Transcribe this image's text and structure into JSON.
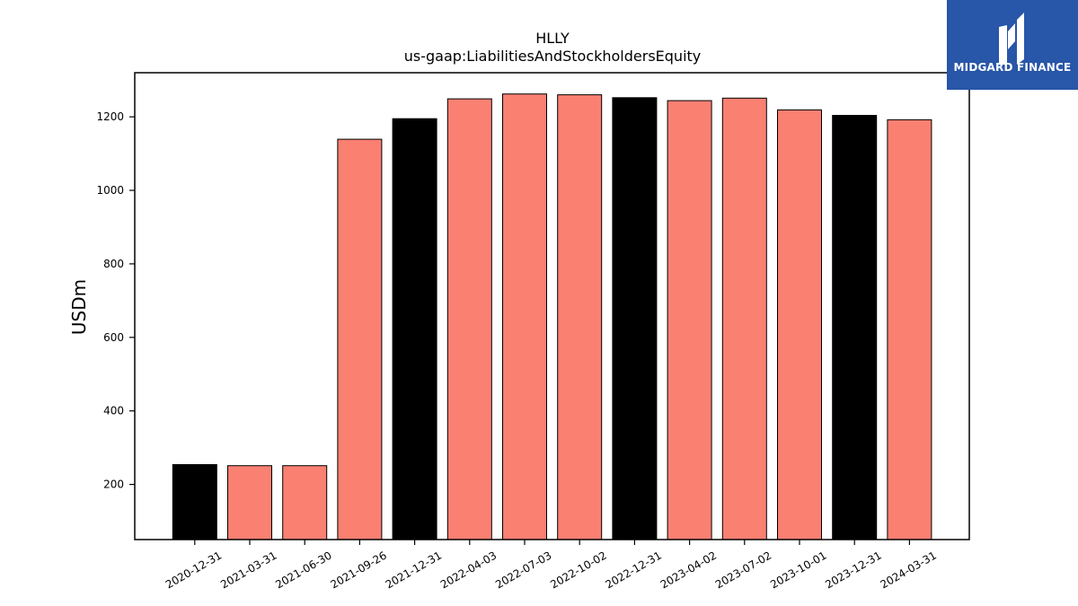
{
  "chart_data": {
    "type": "bar",
    "title": "HLLY",
    "subtitle": "us-gaap:LiabilitiesAndStockholdersEquity",
    "ylabel": "USDm",
    "xlabel": "",
    "ylim": [
      50,
      1320
    ],
    "yticks": [
      200,
      400,
      600,
      800,
      1000,
      1200
    ],
    "grid": false,
    "categories": [
      "2020-12-31",
      "2021-03-31",
      "2021-06-30",
      "2021-09-26",
      "2021-12-31",
      "2022-04-03",
      "2022-07-03",
      "2022-10-02",
      "2022-12-31",
      "2023-04-02",
      "2023-07-02",
      "2023-10-01",
      "2023-12-31",
      "2024-03-31"
    ],
    "values": [
      254,
      251,
      251,
      1139,
      1195,
      1249,
      1262,
      1260,
      1252,
      1244,
      1251,
      1219,
      1204,
      1192
    ],
    "bar_colors": [
      "#000000",
      "#fa8072",
      "#fa8072",
      "#fa8072",
      "#000000",
      "#fa8072",
      "#fa8072",
      "#fa8072",
      "#000000",
      "#fa8072",
      "#fa8072",
      "#fa8072",
      "#000000",
      "#fa8072"
    ],
    "colors": {
      "annual": "#000000",
      "quarterly": "#fa8072"
    }
  },
  "logo": {
    "text": "MIDGARD FINANCE",
    "background": "#2856a8"
  }
}
